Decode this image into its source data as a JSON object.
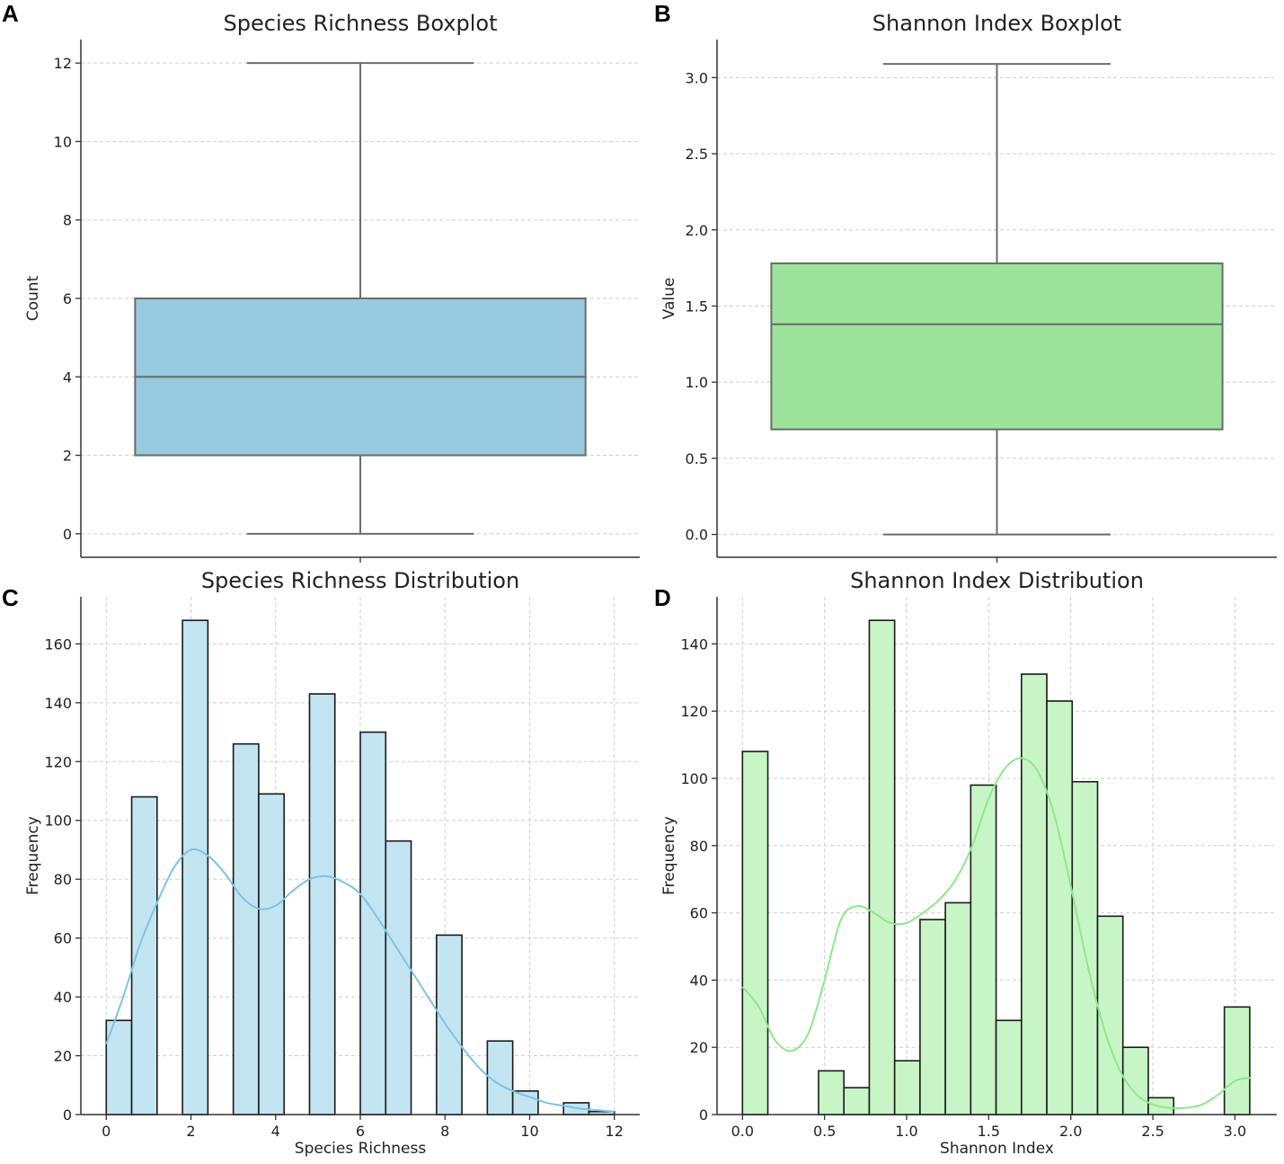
{
  "colors": {
    "blue_fill": "#97cadf",
    "blue_hist": "#c3e4f1",
    "blue_kde": "#7cc4e6",
    "green_fill": "#9de39b",
    "green_hist": "#c7f5c6",
    "green_kde": "#8ee88a",
    "box_line": "#6b6b6b",
    "bar_edge": "#1a1a1a"
  },
  "chart_data": [
    {
      "panel": "A",
      "type": "box",
      "title": "Species Richness Boxplot",
      "xlabel": "",
      "ylabel": "Count",
      "ylim": [
        -0.6,
        12.6
      ],
      "yticks": [
        0,
        2,
        4,
        6,
        8,
        10,
        12
      ],
      "ytick_labels": [
        "0",
        "2",
        "4",
        "6",
        "8",
        "10",
        "12"
      ],
      "grid": true,
      "box": {
        "whisker_low": 0,
        "q1": 2,
        "median": 4,
        "q3": 6,
        "whisker_high": 12
      },
      "color": "#97cadf"
    },
    {
      "panel": "B",
      "type": "box",
      "title": "Shannon Index Boxplot",
      "xlabel": "",
      "ylabel": "Value",
      "ylim": [
        -0.15,
        3.25
      ],
      "yticks": [
        0,
        0.5,
        1,
        1.5,
        2,
        2.5,
        3
      ],
      "ytick_labels": [
        "0.0",
        "0.5",
        "1.0",
        "1.5",
        "2.0",
        "2.5",
        "3.0"
      ],
      "grid": true,
      "box": {
        "whisker_low": 0,
        "q1": 0.69,
        "median": 1.38,
        "q3": 1.78,
        "whisker_high": 3.09
      },
      "color": "#9de39b"
    },
    {
      "panel": "C",
      "type": "histogram",
      "title": "Species Richness Distribution",
      "xlabel": "Species Richness",
      "ylabel": "Frequency",
      "xlim": [
        -0.6,
        12.6
      ],
      "ylim": [
        0,
        176
      ],
      "xticks": [
        0,
        2,
        4,
        6,
        8,
        10,
        12
      ],
      "xtick_labels": [
        "0",
        "2",
        "4",
        "6",
        "8",
        "10",
        "12"
      ],
      "yticks": [
        0,
        20,
        40,
        60,
        80,
        100,
        120,
        140,
        160
      ],
      "ytick_labels": [
        "0",
        "20",
        "40",
        "60",
        "80",
        "100",
        "120",
        "140",
        "160"
      ],
      "grid": true,
      "bin_start": 0,
      "bin_width": 0.6,
      "counts": [
        32,
        108,
        0,
        168,
        0,
        126,
        109,
        0,
        143,
        0,
        130,
        93,
        0,
        61,
        0,
        25,
        8,
        0,
        4,
        1
      ],
      "kde": {
        "x": [
          0,
          0.4,
          0.8,
          1.2,
          1.6,
          2.0,
          2.4,
          2.8,
          3.2,
          3.6,
          4.0,
          4.4,
          4.8,
          5.2,
          5.6,
          6.0,
          6.4,
          6.8,
          7.2,
          7.6,
          8.0,
          8.4,
          8.8,
          9.2,
          9.6,
          10.0,
          10.4,
          10.8,
          11.2,
          11.6,
          12.0
        ],
        "y": [
          24,
          40,
          58,
          72,
          84,
          90,
          88,
          82,
          74,
          70,
          71,
          76,
          80,
          81,
          79,
          75,
          67,
          58,
          49,
          40,
          31,
          23,
          16,
          11,
          8,
          6,
          4,
          3,
          2,
          1.5,
          1
        ]
      },
      "color": "#c3e4f1",
      "kde_color": "#7cc4e6"
    },
    {
      "panel": "D",
      "type": "histogram",
      "title": "Shannon Index Distribution",
      "xlabel": "Shannon Index",
      "ylabel": "Frequency",
      "xlim": [
        -0.155,
        3.255
      ],
      "ylim": [
        0,
        154
      ],
      "xticks": [
        0,
        0.5,
        1,
        1.5,
        2,
        2.5,
        3
      ],
      "xtick_labels": [
        "0.0",
        "0.5",
        "1.0",
        "1.5",
        "2.0",
        "2.5",
        "3.0"
      ],
      "yticks": [
        0,
        20,
        40,
        60,
        80,
        100,
        120,
        140
      ],
      "ytick_labels": [
        "0",
        "20",
        "40",
        "60",
        "80",
        "100",
        "120",
        "140"
      ],
      "grid": true,
      "bin_start": 0,
      "bin_width": 0.1545,
      "counts": [
        108,
        0,
        0,
        13,
        8,
        147,
        16,
        58,
        63,
        98,
        28,
        131,
        123,
        99,
        59,
        20,
        5,
        0,
        0,
        32
      ],
      "kde": {
        "x": [
          0,
          0.1,
          0.2,
          0.3,
          0.4,
          0.5,
          0.6,
          0.7,
          0.8,
          0.9,
          1.0,
          1.1,
          1.2,
          1.3,
          1.4,
          1.5,
          1.6,
          1.7,
          1.8,
          1.9,
          2.0,
          2.1,
          2.2,
          2.3,
          2.4,
          2.5,
          2.6,
          2.7,
          2.8,
          2.9,
          3.0,
          3.1
        ],
        "y": [
          38,
          32,
          22,
          19,
          24,
          40,
          58,
          62,
          60,
          57,
          57,
          60,
          64,
          70,
          80,
          94,
          103,
          106,
          102,
          89,
          68,
          45,
          26,
          13,
          6,
          3,
          2,
          2,
          3,
          6,
          10,
          11
        ]
      },
      "color": "#c7f5c6",
      "kde_color": "#8ee88a"
    }
  ]
}
